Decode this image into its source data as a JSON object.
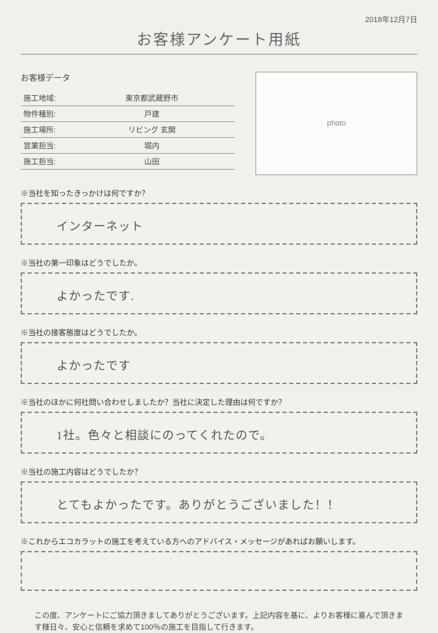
{
  "date": "2018年12月7日",
  "title": "お客様アンケート用紙",
  "customer_data_label": "お客様データ",
  "table": {
    "rows": [
      {
        "label": "施工地域:",
        "value": "東京都武蔵野市"
      },
      {
        "label": "物件種別:",
        "value": "戸建"
      },
      {
        "label": "施工場所:",
        "value": "リビング 玄関"
      },
      {
        "label": "営業担当:",
        "value": "堀内"
      },
      {
        "label": "施工担当:",
        "value": "山田"
      }
    ]
  },
  "photo_placeholder": "photo",
  "questions": [
    {
      "q": "※当社を知ったきっかけは何ですか？",
      "a": "インターネット"
    },
    {
      "q": "※当社の第一印象はどうでしたか。",
      "a": "よかったです."
    },
    {
      "q": "※当社の接客態度はどうでしたか。",
      "a": "よかったです"
    },
    {
      "q": "※当社のほかに何社問い合わせしましたか？当社に決定した理由は何ですか？",
      "a": "1社。色々と相談にのってくれたので。"
    },
    {
      "q": "※当社の施工内容はどうでしたか？",
      "a": "とてもよかったです。ありがとうございました！！"
    },
    {
      "q": "※これからエコカラットの施工を考えている方へのアドバイス・メッセージがあればお願いします。",
      "a": ""
    }
  ],
  "footer": "この度、アンケートにご協力頂きましてありがとうございます。上記内容を基に、よりお客様に喜んで頂きます様日々、安心と信頼を求めて100％の施工を目指して行きます。"
}
